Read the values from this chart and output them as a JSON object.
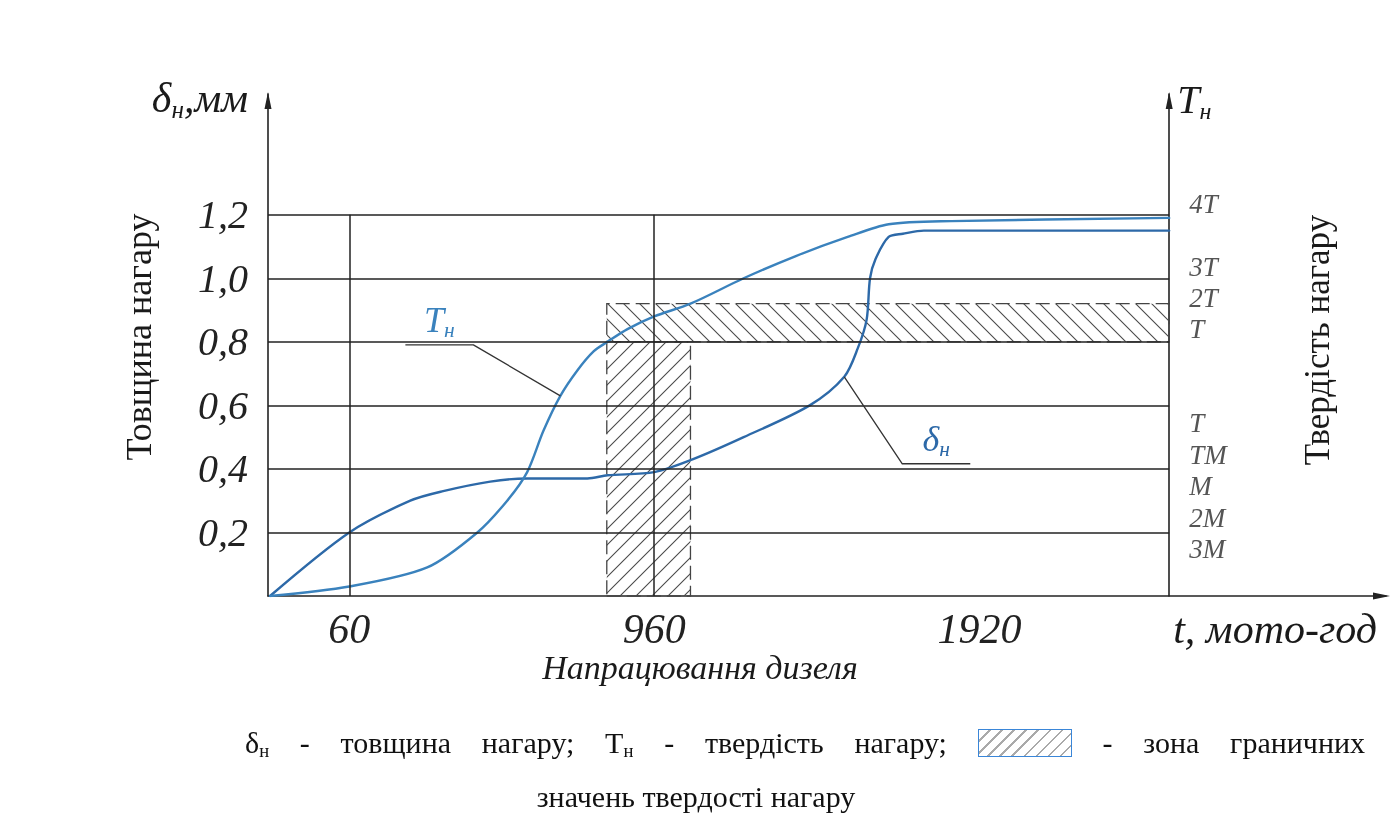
{
  "chart_data": {
    "type": "line",
    "xlabel": "Напрацювання дизеля",
    "ylabel": "Товщина нагару",
    "y2label": "Твердість нагару",
    "annotations": [
      "δ$_{н}$,мм",
      "Т$_{н}$",
      "t, мото-год",
      "δ$_{н}$ - товщина нагару; Т$_{н}$ - твердість нагару;",
      "- зона граничних",
      "значень твердості нагару"
    ],
    "series": [
      {
        "name": "δ$_{н}$",
        "color": "#2d69a8",
        "x": [
          -174,
          60,
          240,
          337,
          476,
          585,
          763,
          822,
          960,
          1073,
          1224,
          1419,
          1521,
          1561,
          1587,
          1597,
          1613,
          1652,
          1694,
          1756,
          2480
        ],
        "values": [
          0,
          0.2,
          0.3,
          0.33,
          0.36,
          0.37,
          0.37,
          0.38,
          0.39,
          0.43,
          0.5,
          0.6,
          0.69,
          0.78,
          0.87,
          1.0,
          1.06,
          1.13,
          1.14,
          1.15,
          1.15
        ]
      },
      {
        "name": "Т$_{н}$",
        "color": "#3a82bd",
        "x": [
          -174,
          60,
          290,
          438,
          526,
          585,
          633,
          683,
          733,
          781,
          822,
          881,
          960,
          1067,
          1224,
          1378,
          1531,
          1652,
          1836,
          2480
        ],
        "values": [
          0,
          0.03,
          0.09,
          0.2,
          0.3,
          0.39,
          0.52,
          0.63,
          0.71,
          0.77,
          0.8,
          0.84,
          0.88,
          0.92,
          1.0,
          1.07,
          1.13,
          1.17,
          1.18,
          1.19
        ]
      }
    ],
    "xlim": [
      -180,
      3120
    ],
    "xticks": [
      60,
      960,
      1920
    ],
    "ylim": [
      0,
      1.58
    ],
    "yticks": [
      {
        "value": 0.2,
        "label": "0,2"
      },
      {
        "value": 0.4,
        "label": "0,4"
      },
      {
        "value": 0.6,
        "label": "0,6"
      },
      {
        "value": 0.8,
        "label": "0,8"
      },
      {
        "value": 1.0,
        "label": "1,0"
      },
      {
        "value": 1.2,
        "label": "1,2"
      }
    ],
    "y2_categories": [
      null,
      null,
      null,
      "4Т",
      null,
      "3Т",
      "2Т",
      "Т",
      null,
      null,
      "Т",
      "ТМ",
      "М",
      "2М",
      "3М",
      null
    ],
    "grid": "y",
    "ref_lines": [
      {
        "axis": "x",
        "value": 60
      },
      {
        "axis": "x",
        "value": 960
      }
    ],
    "bands": [
      {
        "axis": "x",
        "from": 820,
        "to": 1067
      },
      {
        "axis": "y",
        "from": 0.8,
        "to": 0.92
      }
    ]
  }
}
